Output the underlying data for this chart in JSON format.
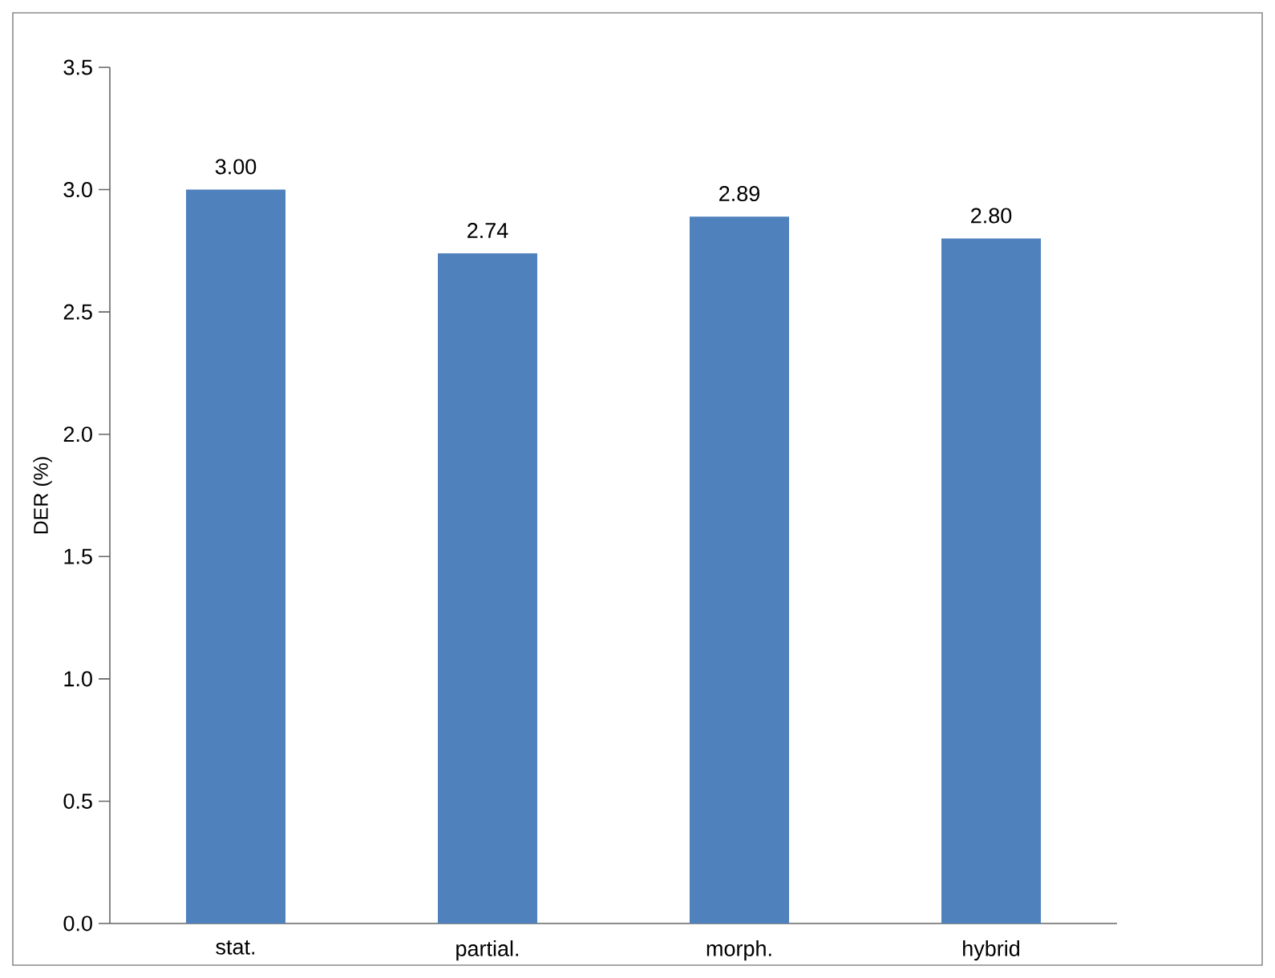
{
  "chart_data": {
    "type": "bar",
    "ylabel": "DER (%)",
    "categories": [
      "stat.",
      "partial.",
      "morph.",
      "hybrid"
    ],
    "values": [
      3.0,
      2.74,
      2.89,
      2.8
    ],
    "value_labels": [
      "3.00",
      "2.74",
      "2.89",
      "2.80"
    ],
    "color": "#4f81bd",
    "ylim": [
      0,
      3.5
    ],
    "yticks": [
      {
        "value": 0,
        "label": "0.0"
      },
      {
        "value": 0.5,
        "label": "0.5"
      },
      {
        "value": 1,
        "label": "1.0"
      },
      {
        "value": 1.5,
        "label": "1.5"
      },
      {
        "value": 2,
        "label": "2.0"
      },
      {
        "value": 2.5,
        "label": "2.5"
      },
      {
        "value": 3,
        "label": "3.0"
      },
      {
        "value": 3.5,
        "label": "3.5"
      }
    ],
    "grid": false
  }
}
